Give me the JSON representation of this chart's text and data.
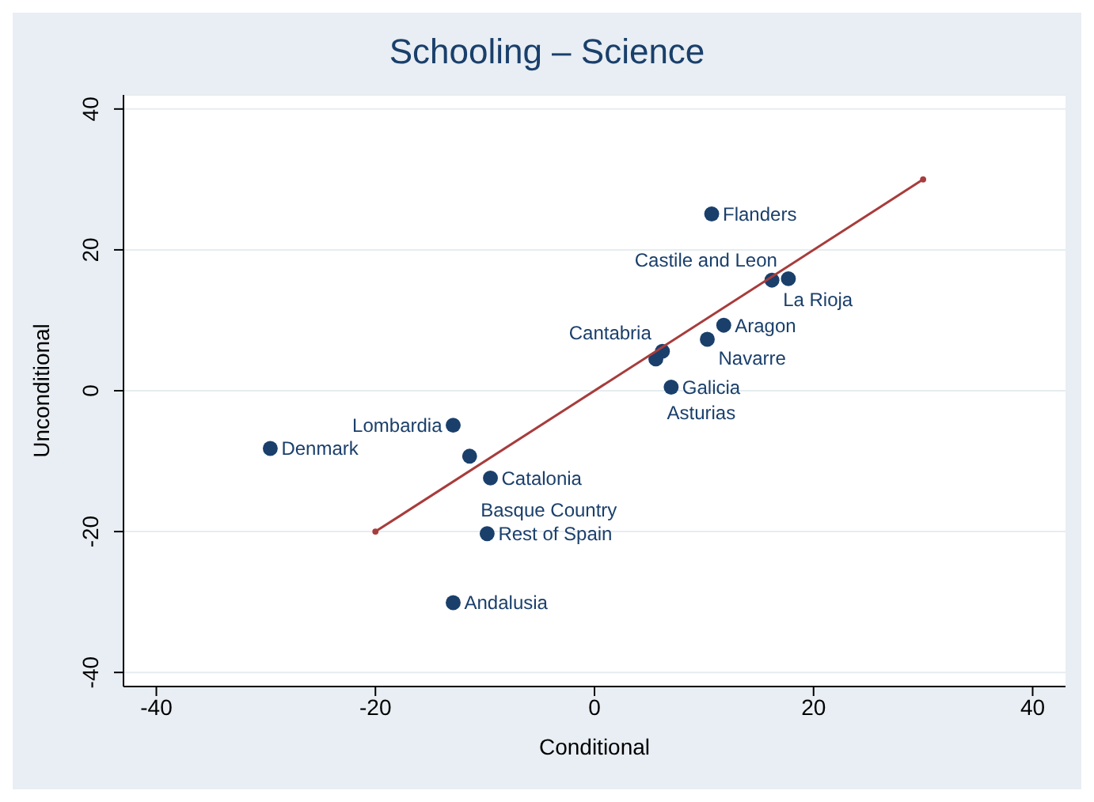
{
  "chart_data": {
    "type": "scatter",
    "title": "Schooling – Science",
    "xlabel": "Conditional",
    "ylabel": "Unconditional",
    "xlim": [
      -43,
      43
    ],
    "ylim": [
      -42,
      42
    ],
    "xticks": [
      -40,
      -20,
      0,
      20,
      40
    ],
    "yticks": [
      -40,
      -20,
      0,
      20,
      40
    ],
    "grid": "y",
    "legend": false,
    "marker": "circle",
    "series": [
      {
        "color": "#1a3f6b",
        "x": [
          10.7,
          16.2,
          17.7,
          11.8,
          10.3,
          6.2,
          5.6,
          7.0,
          -12.9,
          -29.6,
          -11.4,
          -9.5,
          -9.8,
          -12.9
        ],
        "values": [
          25.1,
          15.7,
          15.9,
          9.3,
          7.3,
          5.6,
          4.5,
          0.5,
          -4.9,
          -8.2,
          -9.3,
          -12.4,
          -20.3,
          -30.1
        ]
      },
      {
        "type": "line",
        "color": "#a83c3c",
        "x": [
          -20,
          30
        ],
        "values": [
          -20,
          30
        ]
      }
    ],
    "annotations": [
      {
        "text": "Flanders",
        "x": 10.7,
        "y": 25.1
      },
      {
        "text": "La Rioja",
        "x": 16.2,
        "y": 15.7
      },
      {
        "text": "Castile and Leon",
        "x": 17.7,
        "y": 15.9
      },
      {
        "text": "Aragon",
        "x": 11.8,
        "y": 9.3
      },
      {
        "text": "Navarre",
        "x": 10.3,
        "y": 7.3
      },
      {
        "text": "Cantabria",
        "x": 6.2,
        "y": 5.6
      },
      {
        "text": "Asturias",
        "x": 5.6,
        "y": 4.5
      },
      {
        "text": "Galicia",
        "x": 7.0,
        "y": 0.5
      },
      {
        "text": "Lombardia",
        "x": -12.9,
        "y": -4.9
      },
      {
        "text": "Denmark",
        "x": -29.6,
        "y": -8.2
      },
      {
        "text": "Basque Country",
        "x": -11.4,
        "y": -9.3
      },
      {
        "text": "Catalonia",
        "x": -9.5,
        "y": -12.4
      },
      {
        "text": "Rest of Spain",
        "x": -9.8,
        "y": -20.3
      },
      {
        "text": "Andalusia",
        "x": -12.9,
        "y": -30.1
      }
    ]
  }
}
